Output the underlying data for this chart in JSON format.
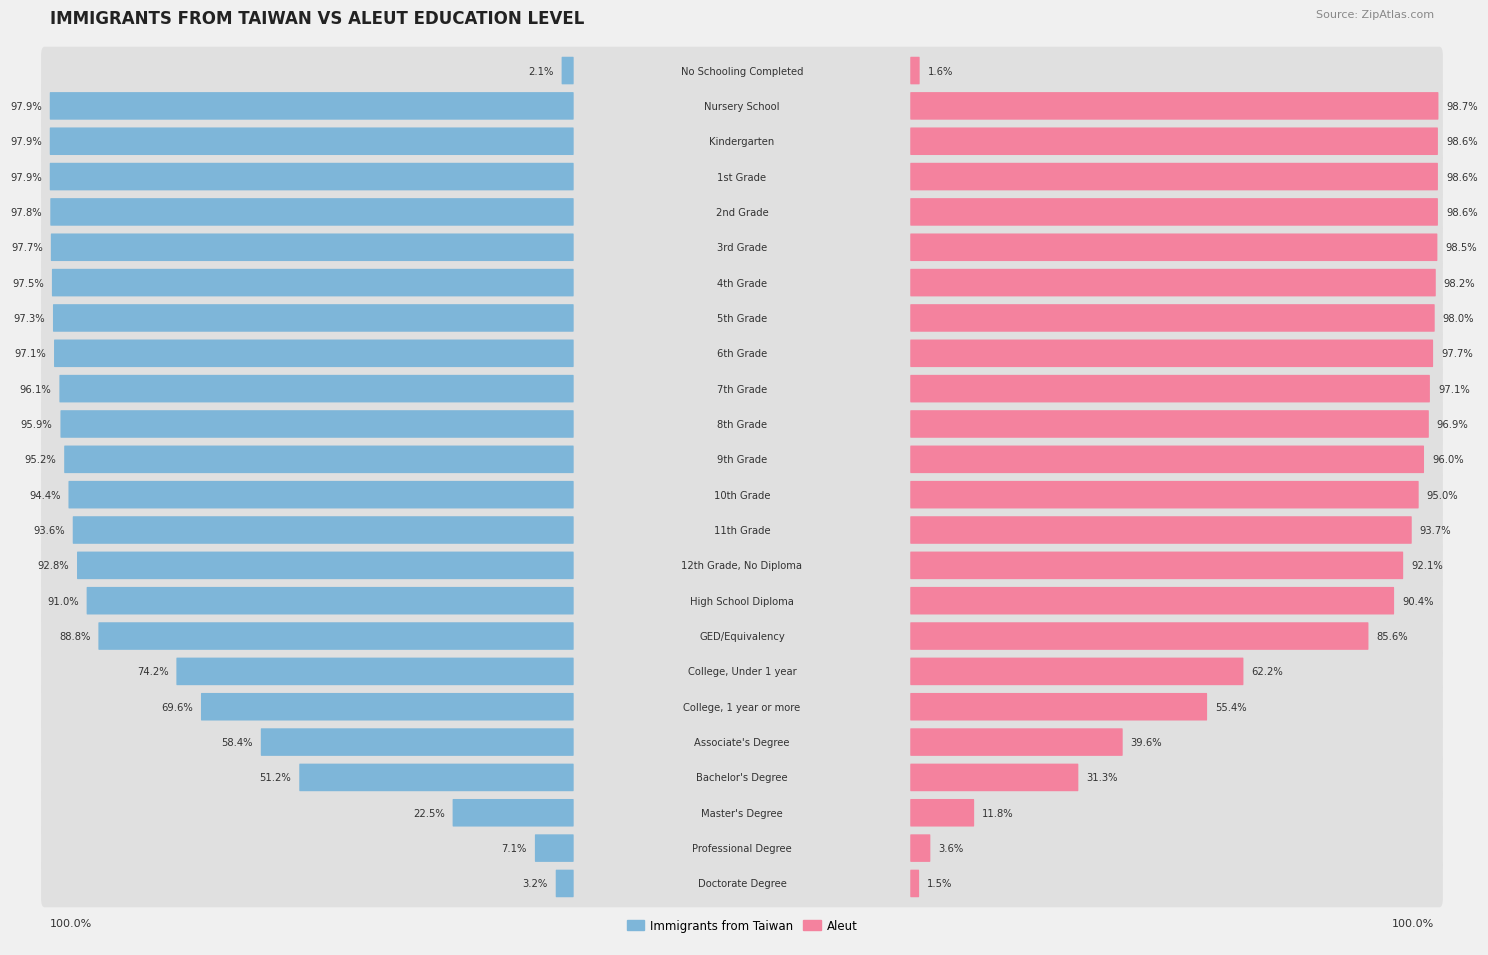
{
  "title": "IMMIGRANTS FROM TAIWAN VS ALEUT EDUCATION LEVEL",
  "source": "Source: ZipAtlas.com",
  "categories": [
    "No Schooling Completed",
    "Nursery School",
    "Kindergarten",
    "1st Grade",
    "2nd Grade",
    "3rd Grade",
    "4th Grade",
    "5th Grade",
    "6th Grade",
    "7th Grade",
    "8th Grade",
    "9th Grade",
    "10th Grade",
    "11th Grade",
    "12th Grade, No Diploma",
    "High School Diploma",
    "GED/Equivalency",
    "College, Under 1 year",
    "College, 1 year or more",
    "Associate's Degree",
    "Bachelor's Degree",
    "Master's Degree",
    "Professional Degree",
    "Doctorate Degree"
  ],
  "taiwan_values": [
    2.1,
    97.9,
    97.9,
    97.9,
    97.8,
    97.7,
    97.5,
    97.3,
    97.1,
    96.1,
    95.9,
    95.2,
    94.4,
    93.6,
    92.8,
    91.0,
    88.8,
    74.2,
    69.6,
    58.4,
    51.2,
    22.5,
    7.1,
    3.2
  ],
  "aleut_values": [
    1.6,
    98.7,
    98.6,
    98.6,
    98.6,
    98.5,
    98.2,
    98.0,
    97.7,
    97.1,
    96.9,
    96.0,
    95.0,
    93.7,
    92.1,
    90.4,
    85.6,
    62.2,
    55.4,
    39.6,
    31.3,
    11.8,
    3.6,
    1.5
  ],
  "taiwan_color": "#7eb6d9",
  "aleut_color": "#f4829e",
  "bg_color": "#f0f0f0",
  "row_bg_color": "#e8e8e8",
  "legend_taiwan": "Immigrants from Taiwan",
  "legend_aleut": "Aleut",
  "left_axis_label": "100.0%",
  "right_axis_label": "100.0%"
}
